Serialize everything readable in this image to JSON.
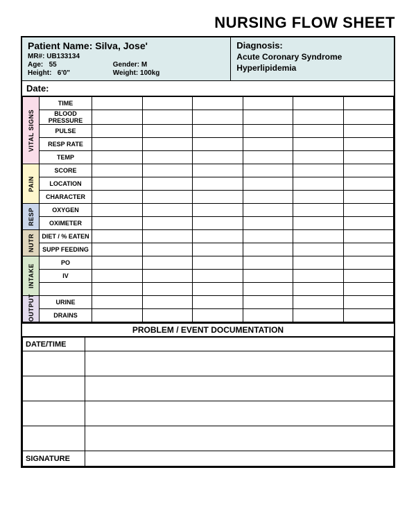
{
  "title": "NURSING FLOW SHEET",
  "patient": {
    "name_label": "Patient Name:",
    "name": "Silva, Jose'",
    "mr_label": "MR#:",
    "mr": "UB133134",
    "age_label": "Age:",
    "age": "55",
    "gender_label": "Gender:",
    "gender": "M",
    "height_label": "Height:",
    "height": "6'0\"",
    "weight_label": "Weight:",
    "weight": "100kg"
  },
  "diagnosis": {
    "label": "Diagnosis:",
    "line1": "Acute Coronary Syndrome",
    "line2": "Hyperlipidemia"
  },
  "date_label": "Date:",
  "categories": {
    "vital": {
      "label": "VITAL SIGNS",
      "bg": "#fadde9"
    },
    "pain": {
      "label": "PAIN",
      "bg": "#fef6cc"
    },
    "resp": {
      "label": "RESP",
      "bg": "#cbd6eb"
    },
    "nutr": {
      "label": "NUTR",
      "bg": "#e0d6bd"
    },
    "intake": {
      "label": "INTAKE",
      "bg": "#d8e8cd"
    },
    "output": {
      "label": "OUTPUT",
      "bg": "#e3dbed"
    }
  },
  "rows": {
    "time": "TIME",
    "bp": "BLOOD PRESSURE",
    "pulse": "PULSE",
    "resp_rate": "RESP RATE",
    "temp": "TEMP",
    "score": "SCORE",
    "location": "LOCATION",
    "character": "CHARACTER",
    "oxygen": "OXYGEN",
    "oximeter": "OXIMETER",
    "diet": "DIET / % EATEN",
    "supp": "SUPP FEEDING",
    "po": "PO",
    "iv": "IV",
    "urine": "URINE",
    "drains": "DRAINS"
  },
  "data_columns": 6,
  "problem": {
    "header": "PROBLEM / EVENT DOCUMENTATION",
    "datetime_label": "DATE/TIME",
    "rows": 4,
    "signature_label": "SIGNATURE"
  },
  "colors": {
    "header_bg": "#dcebec",
    "border": "#000000",
    "page_bg": "#ffffff"
  }
}
